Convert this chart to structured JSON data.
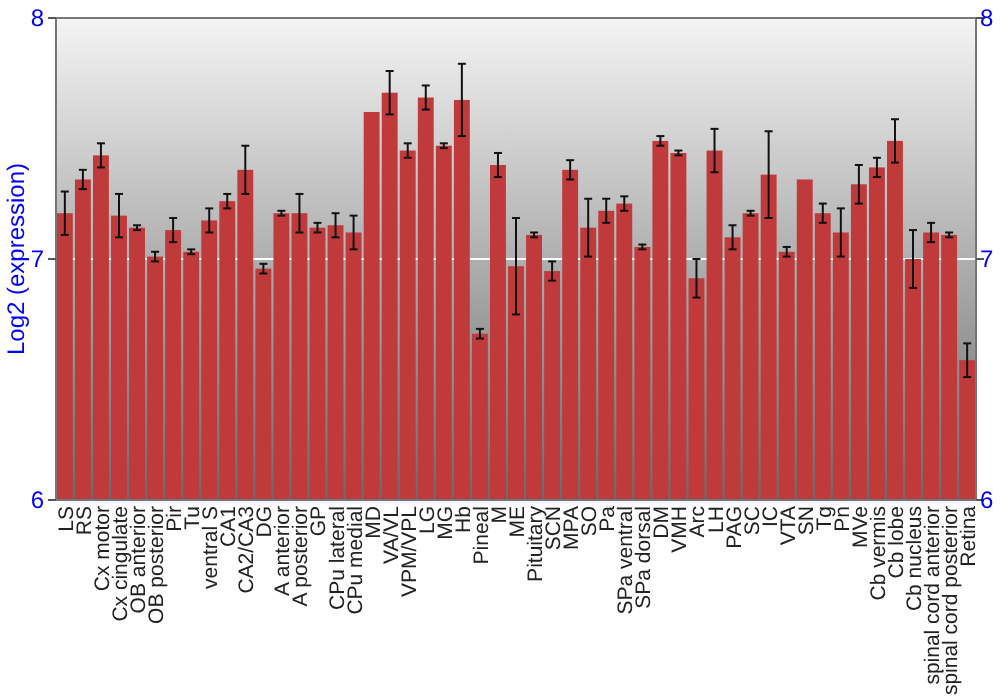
{
  "chart_data": {
    "type": "bar",
    "ylabel": "Log2 (expression)",
    "categories": [
      "LS",
      "RS",
      "Cx motor",
      "Cx cingulate",
      "OB anterior",
      "OB posterior",
      "Pir",
      "Tu",
      "ventral S",
      "CA1",
      "CA2/CA3",
      "DG",
      "A anterior",
      "A posterior",
      "GP",
      "CPu lateral",
      "CPu medial",
      "MD",
      "VA/VL",
      "VPM/VPL",
      "LG",
      "MG",
      "Hb",
      "Pineal",
      "M",
      "ME",
      "Pituitary",
      "SCN",
      "MPA",
      "SO",
      "Pa",
      "SPa ventral",
      "SPa dorsal",
      "DM",
      "VMH",
      "Arc",
      "LH",
      "PAG",
      "SC",
      "IC",
      "VTA",
      "SN",
      "Tg",
      "Pn",
      "MVe",
      "Cb vermis",
      "Cb lobe",
      "Cb nucleus",
      "spinal cord anterior",
      "spinal cord posterior",
      "Retina"
    ],
    "values": [
      7.19,
      7.33,
      7.43,
      7.18,
      7.13,
      7.01,
      7.12,
      7.03,
      7.16,
      7.24,
      7.37,
      6.96,
      7.19,
      7.19,
      7.13,
      7.14,
      7.11,
      7.61,
      7.69,
      7.45,
      7.67,
      7.47,
      7.66,
      6.69,
      7.39,
      6.97,
      7.1,
      6.95,
      7.37,
      7.13,
      7.2,
      7.23,
      7.05,
      7.49,
      7.44,
      6.92,
      7.45,
      7.09,
      7.19,
      7.35,
      7.03,
      7.33,
      7.19,
      7.11,
      7.31,
      7.38,
      7.49,
      7.0,
      7.11,
      7.1,
      6.58
    ],
    "errors": [
      0.09,
      0.04,
      0.05,
      0.09,
      0.01,
      0.02,
      0.05,
      0.01,
      0.05,
      0.03,
      0.1,
      0.02,
      0.01,
      0.08,
      0.02,
      0.05,
      0.07,
      null,
      0.09,
      0.03,
      0.05,
      0.01,
      0.15,
      0.02,
      0.05,
      0.2,
      0.01,
      0.04,
      0.04,
      0.12,
      0.05,
      0.03,
      0.01,
      0.02,
      0.01,
      0.08,
      0.09,
      0.05,
      0.01,
      0.18,
      0.02,
      null,
      0.04,
      0.1,
      0.08,
      0.04,
      0.09,
      0.12,
      0.04,
      0.01,
      0.07
    ],
    "color": "#c0393b",
    "ylim": [
      6,
      8
    ],
    "yticks": [
      6,
      7,
      8
    ],
    "y2lim": [
      6,
      8
    ],
    "y2ticks": [
      6,
      7,
      8
    ],
    "grid": "y"
  }
}
